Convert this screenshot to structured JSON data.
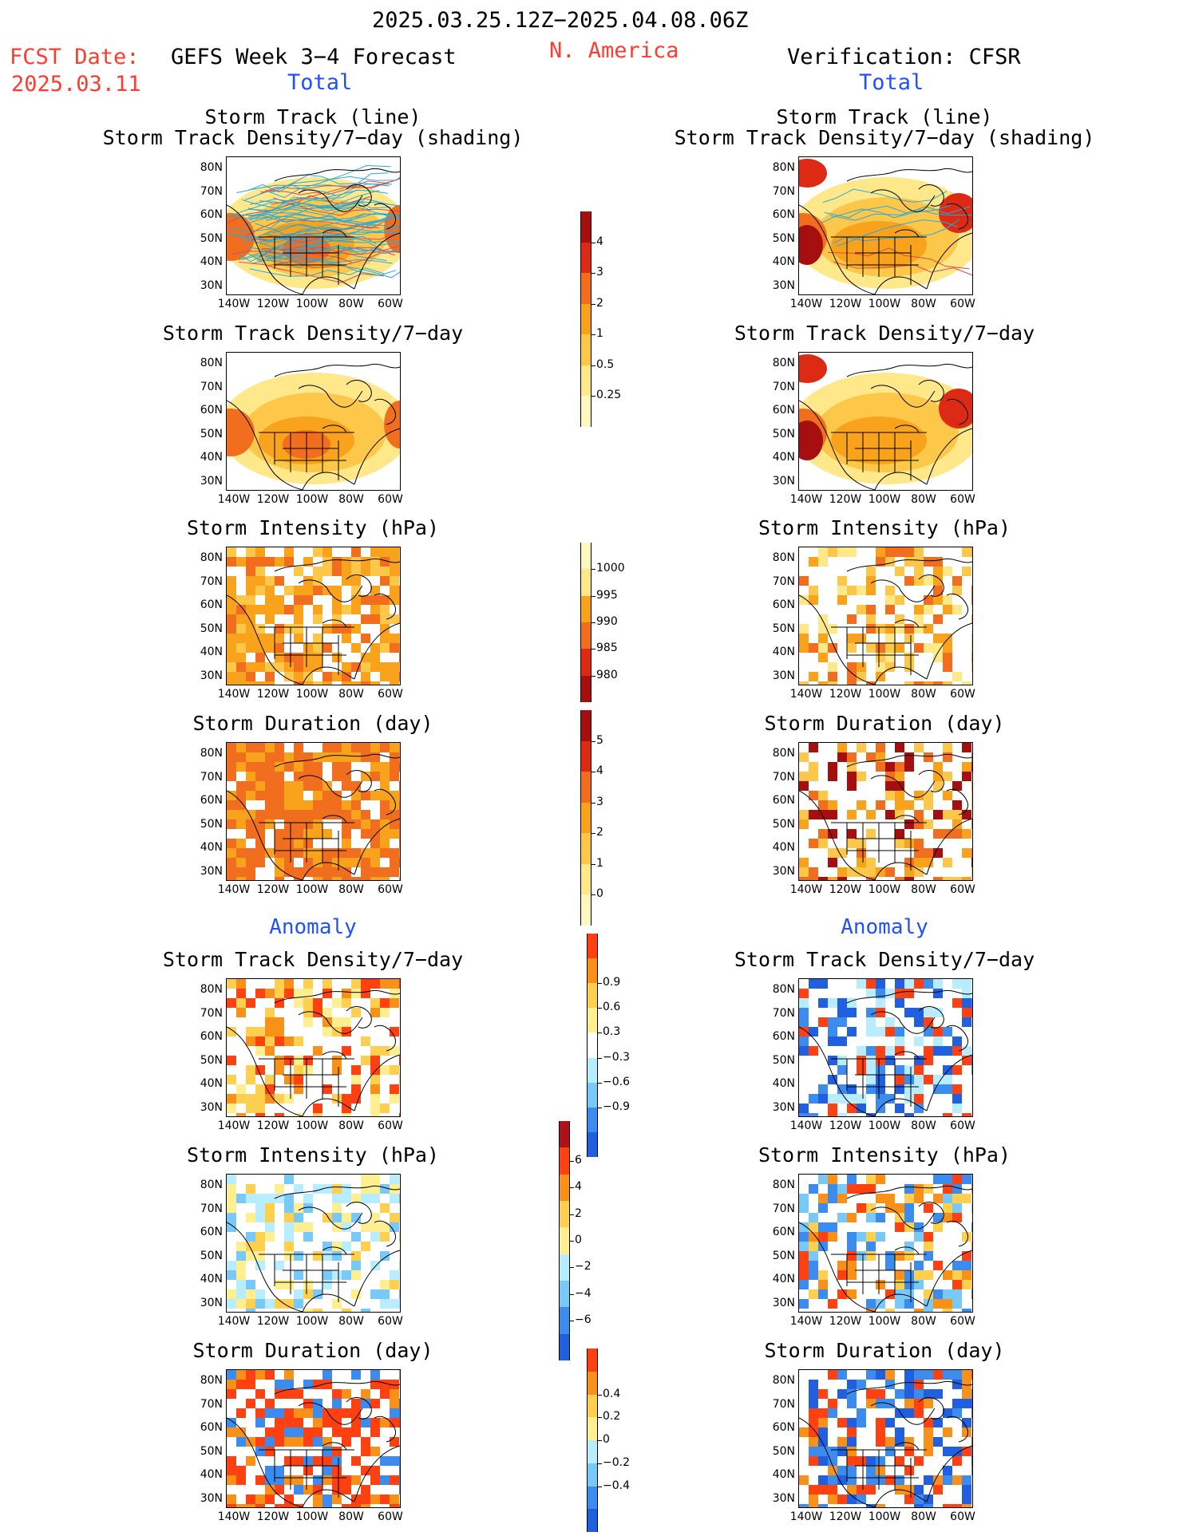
{
  "header": {
    "date_range": "2025.03.25.12Z−2025.04.08.06Z",
    "fcst_label": "FCST Date:",
    "fcst_date": "2025.03.11",
    "forecast_title": "GEFS Week 3−4 Forecast",
    "region": "N. America",
    "verification_title": "Verification: CFSR",
    "total_left": "Total",
    "total_right": "Total"
  },
  "sections": {
    "anomaly_left": "Anomaly",
    "anomaly_right": "Anomaly"
  },
  "panel_titles": {
    "track_line": "Storm Track (line)",
    "track_shading": "Storm Track Density/7−day (shading)",
    "density": "Storm Track Density/7−day",
    "intensity": "Storm Intensity (hPa)",
    "duration": "Storm Duration (day)"
  },
  "axes": {
    "lat_labels": [
      "80N",
      "70N",
      "60N",
      "50N",
      "40N",
      "30N"
    ],
    "lon_labels": [
      "140W",
      "120W",
      "100W",
      "80W",
      "60W"
    ]
  },
  "colorbars": {
    "density_total": {
      "ticks": [
        "4",
        "3",
        "2",
        "1",
        "0.5",
        "0.25"
      ],
      "colors": [
        "#a50f0f",
        "#dd2a15",
        "#f26e1f",
        "#f9a21b",
        "#fdc84a",
        "#ffe88a",
        "#fff7c0"
      ]
    },
    "intensity_total": {
      "ticks": [
        "1000",
        "995",
        "990",
        "985",
        "980"
      ],
      "colors": [
        "#fff7c0",
        "#ffe88a",
        "#f9a21b",
        "#f26e1f",
        "#dd2a15",
        "#a50f0f"
      ]
    },
    "duration_total": {
      "ticks": [
        "5",
        "4",
        "3",
        "2",
        "1",
        "0"
      ],
      "colors": [
        "#a50f0f",
        "#dd2a15",
        "#f26e1f",
        "#f9a21b",
        "#fdc84a",
        "#ffe88a",
        "#fff7c0"
      ]
    },
    "density_anom": {
      "ticks": [
        "0.9",
        "0.6",
        "0.3",
        "−0.3",
        "−0.6",
        "−0.9"
      ],
      "colors": [
        "#ff4010",
        "#f99018",
        "#ffd050",
        "#ffef90",
        "#ffffff",
        "#b8ecff",
        "#78c8f8",
        "#3c8cf0",
        "#1f5fe0"
      ]
    },
    "intensity_anom": {
      "ticks": [
        "6",
        "4",
        "2",
        "0",
        "−2",
        "−4",
        "−6"
      ],
      "colors": [
        "#b0101a",
        "#ff4010",
        "#f99018",
        "#ffd050",
        "#ffef90",
        "#b8ecff",
        "#78c8f8",
        "#3c8cf0",
        "#1f5fe0"
      ]
    },
    "duration_anom": {
      "ticks": [
        "0.4",
        "0.2",
        "0",
        "−0.2",
        "−0.4"
      ],
      "colors": [
        "#ff4010",
        "#f99018",
        "#ffd050",
        "#ffef90",
        "#b8ecff",
        "#78c8f8",
        "#3c8cf0",
        "#1f5fe0"
      ]
    }
  }
}
